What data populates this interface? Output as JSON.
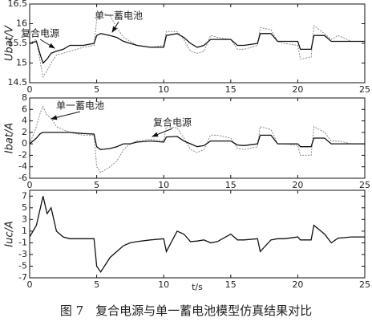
{
  "chart_data": [
    {
      "type": "line",
      "ylabel": "Ubat/V",
      "xlim": [
        0,
        25
      ],
      "xticks": [
        0,
        5,
        10,
        15,
        20,
        25
      ],
      "ylim": [
        14.5,
        16.5
      ],
      "yticks": [
        14.5,
        15,
        15.5,
        16,
        16.5
      ],
      "annotations": [
        "复合电源",
        "单一蓄电池"
      ],
      "x": [
        0,
        0.5,
        0.8,
        1,
        1.3,
        1.6,
        2,
        2.5,
        3,
        4,
        4.8,
        5,
        5.3,
        6,
        6.5,
        7,
        7.5,
        8,
        9,
        10,
        10.2,
        11,
        11.5,
        12,
        12.5,
        13,
        13.5,
        14,
        15,
        15.5,
        16,
        17,
        17.2,
        18,
        18.5,
        19,
        20,
        20.2,
        21,
        21.2,
        22,
        22.5,
        23,
        24,
        25
      ],
      "series": [
        {
          "color": "#888",
          "dash": true,
          "values": [
            15.5,
            15.6,
            15.0,
            14.65,
            14.8,
            15.0,
            15.2,
            15.25,
            15.3,
            15.4,
            15.45,
            16.1,
            16.3,
            16.2,
            15.9,
            15.65,
            15.55,
            15.45,
            15.4,
            15.45,
            15.8,
            15.8,
            15.6,
            15.3,
            15.25,
            15.3,
            15.7,
            15.65,
            15.6,
            15.35,
            15.35,
            15.45,
            15.9,
            15.85,
            15.55,
            15.5,
            15.45,
            15.1,
            15.15,
            15.95,
            15.75,
            15.6,
            15.7,
            15.55,
            15.55
          ]
        },
        {
          "color": "#111",
          "dash": false,
          "values": [
            15.5,
            15.55,
            15.2,
            15.0,
            15.1,
            15.25,
            15.3,
            15.35,
            15.45,
            15.45,
            15.5,
            15.7,
            15.75,
            15.7,
            15.65,
            15.55,
            15.5,
            15.45,
            15.4,
            15.4,
            15.7,
            15.75,
            15.65,
            15.5,
            15.4,
            15.45,
            15.6,
            15.6,
            15.6,
            15.45,
            15.45,
            15.5,
            15.75,
            15.75,
            15.55,
            15.55,
            15.55,
            15.35,
            15.35,
            15.7,
            15.7,
            15.55,
            15.55,
            15.55,
            15.55
          ]
        }
      ]
    },
    {
      "type": "line",
      "ylabel": "Ibat/A",
      "xlim": [
        0,
        25
      ],
      "xticks": [
        0,
        5,
        10,
        15,
        20,
        25
      ],
      "ylim": [
        -6,
        8
      ],
      "yticks": [
        -6,
        -4,
        -2,
        0,
        2,
        4,
        6,
        8
      ],
      "annotations": [
        "单一蓄电池",
        "复合电源"
      ],
      "x": [
        0,
        0.5,
        0.8,
        1,
        1.3,
        1.6,
        2,
        2.5,
        3,
        4,
        4.8,
        5,
        5.3,
        6,
        6.5,
        7,
        7.5,
        8,
        9,
        10,
        10.2,
        11,
        11.5,
        12,
        12.5,
        13,
        13.5,
        14,
        15,
        15.5,
        16,
        17,
        17.2,
        18,
        18.5,
        19,
        20,
        20.2,
        21,
        21.2,
        22,
        22.5,
        23,
        24,
        25
      ],
      "series": [
        {
          "color": "#888",
          "dash": true,
          "values": [
            0,
            3,
            5.5,
            6.5,
            5,
            4.5,
            3,
            2.5,
            2,
            1.5,
            1.5,
            -4,
            -5,
            -4,
            -3,
            -1,
            0,
            0.5,
            0.8,
            0.5,
            3,
            2.8,
            1,
            -1,
            -1.5,
            -1,
            1.5,
            1.5,
            1,
            -0.8,
            -1,
            -0.5,
            3,
            2.5,
            0,
            0,
            -0.3,
            -2,
            -2,
            3,
            2,
            0.5,
            0.5,
            0,
            0
          ]
        },
        {
          "color": "#111",
          "dash": false,
          "values": [
            0,
            1,
            1.8,
            2,
            2,
            2,
            2,
            2,
            2,
            1.8,
            1.7,
            -0.5,
            -1,
            -0.8,
            -0.5,
            0,
            0,
            0.3,
            0.5,
            0.3,
            1.2,
            1.3,
            0.5,
            0,
            -0.5,
            -0.3,
            0.5,
            0.5,
            0.5,
            -0.2,
            -0.3,
            0,
            1.5,
            1.5,
            0,
            0,
            0,
            -0.5,
            -0.5,
            1,
            1,
            0,
            0,
            0,
            0
          ]
        }
      ]
    },
    {
      "type": "line",
      "ylabel": "Iuc/A",
      "xlabel": "t/s",
      "xlim": [
        0,
        25
      ],
      "xticks": [
        0,
        5,
        10,
        15,
        20,
        25
      ],
      "ylim": [
        -7,
        8
      ],
      "yticks": [
        -7,
        -5,
        -3,
        -1,
        1,
        3,
        5,
        7
      ],
      "annotations": [],
      "x": [
        0,
        0.5,
        0.8,
        1,
        1.3,
        1.6,
        2,
        2.5,
        3,
        4,
        4.8,
        5,
        5.3,
        6,
        6.5,
        7,
        7.5,
        8,
        9,
        10,
        10.2,
        11,
        11.5,
        12,
        12.5,
        13,
        13.5,
        14,
        15,
        15.5,
        16,
        17,
        17.2,
        18,
        18.5,
        19,
        20,
        20.2,
        21,
        21.2,
        22,
        22.5,
        23,
        24,
        25
      ],
      "series": [
        {
          "color": "#111",
          "dash": false,
          "values": [
            0,
            2,
            5,
            7,
            4,
            5,
            1,
            0,
            -0.3,
            -0.3,
            -0.3,
            -5,
            -6,
            -3.5,
            -2.5,
            -1.5,
            -1,
            -0.8,
            -0.5,
            -0.3,
            -2.5,
            1,
            0.5,
            -0.8,
            -0.7,
            -0.5,
            -1,
            -0.8,
            0.5,
            -0.5,
            -0.5,
            -0.3,
            -2.5,
            -0.5,
            -0.3,
            -0.3,
            0,
            -0.5,
            -0.5,
            2,
            0.5,
            -1,
            -0.2,
            0,
            0
          ]
        }
      ]
    }
  ],
  "caption": "图 7　复合电源与单一蓄电池模型仿真结果对比"
}
